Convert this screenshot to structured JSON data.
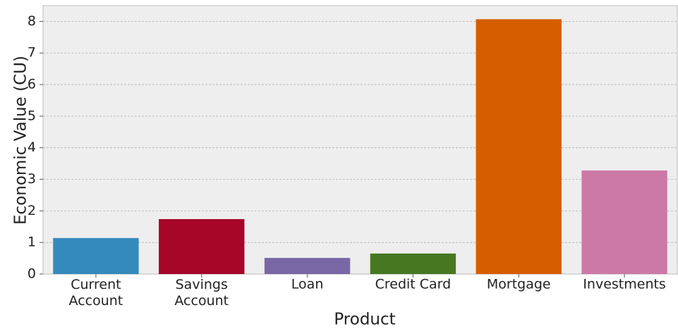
{
  "chart_data": {
    "type": "bar",
    "categories": [
      "Current\nAccount",
      "Savings\nAccount",
      "Loan",
      "Credit Card",
      "Mortgage",
      "Investments"
    ],
    "values": [
      1.14,
      1.74,
      0.51,
      0.65,
      8.07,
      3.28
    ],
    "colors": [
      "#348ABD",
      "#A60628",
      "#7A68A6",
      "#467821",
      "#D55E00",
      "#CC79A7"
    ],
    "xlabel": "Product",
    "ylabel": "Economic Value (CU)",
    "ylim": [
      0,
      8.5
    ],
    "yticks": [
      0,
      1,
      2,
      3,
      4,
      5,
      6,
      7,
      8
    ],
    "grid": true
  }
}
